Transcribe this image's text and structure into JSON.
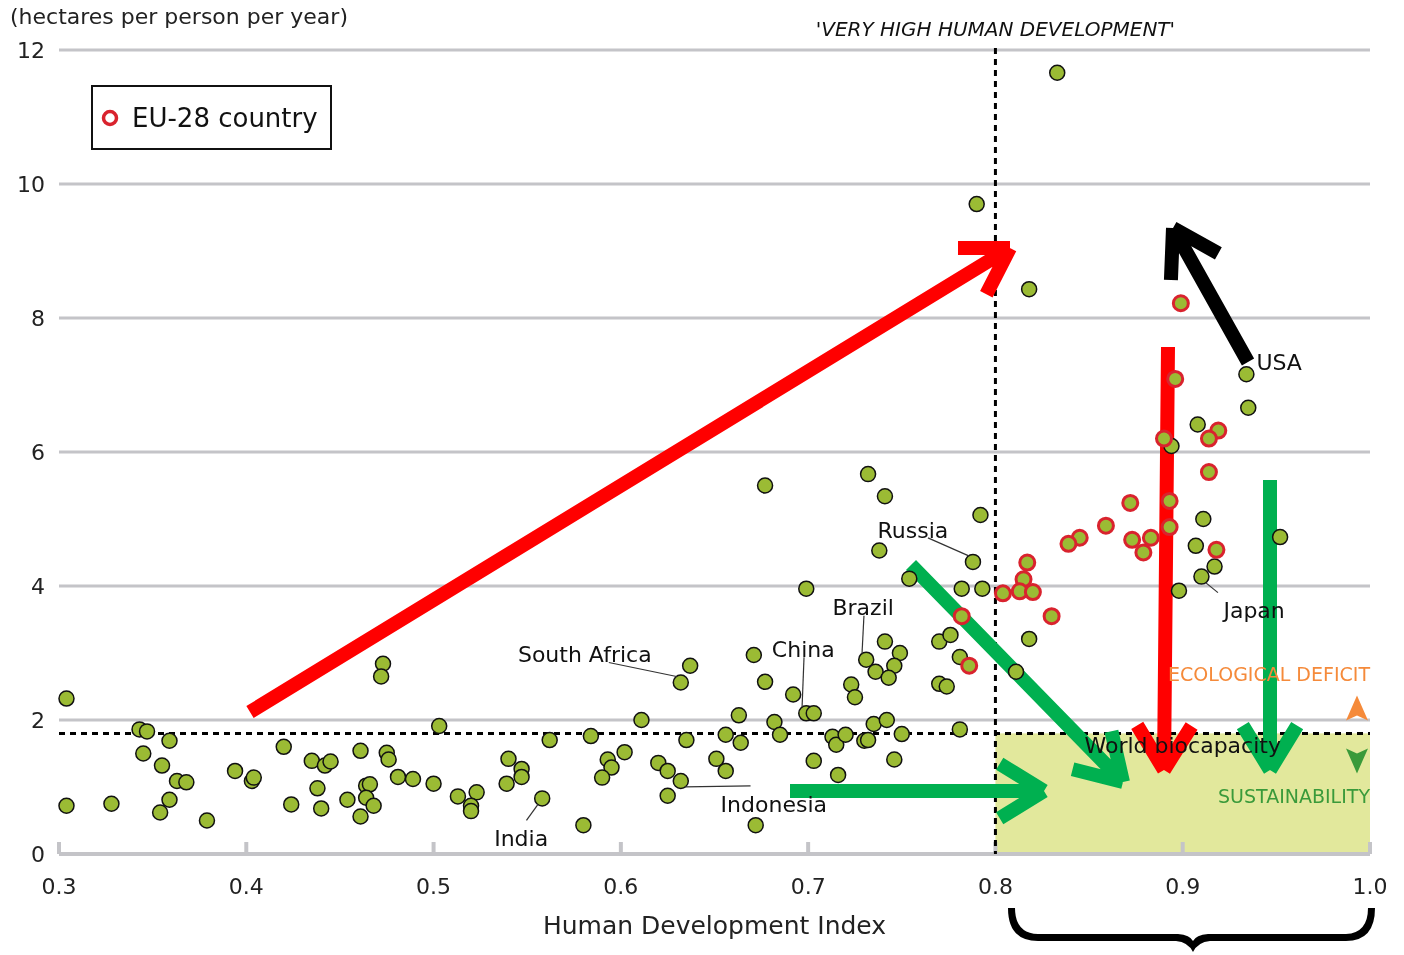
{
  "chart_data": {
    "type": "scatter",
    "ylabel": "(hectares per person per year)",
    "xlabel": "Human Development Index",
    "xlim": [
      0.3,
      1.0
    ],
    "xticks": [
      {
        "value": 0.3,
        "label": "0.3"
      },
      {
        "value": 0.4,
        "label": "0.4"
      },
      {
        "value": 0.5,
        "label": "0.5"
      },
      {
        "value": 0.6,
        "label": "0.6"
      },
      {
        "value": 0.7,
        "label": "0.7"
      },
      {
        "value": 0.8,
        "label": "0.8"
      },
      {
        "value": 0.9,
        "label": "0.9"
      },
      {
        "value": 1.0,
        "label": "1.0"
      }
    ],
    "ylim": [
      0,
      12
    ],
    "yticks": [
      0,
      2,
      4,
      6,
      8,
      10,
      12
    ],
    "grid": "y",
    "legend": "top left",
    "marker": "circle",
    "series": [
      {
        "color": "#9bbb34",
        "x": [
          0.304,
          0.304,
          0.328,
          0.343,
          0.347,
          0.359,
          0.345,
          0.355,
          0.363,
          0.368,
          0.359,
          0.354,
          0.379,
          0.394,
          0.403,
          0.404,
          0.42,
          0.424,
          0.435,
          0.442,
          0.445,
          0.438,
          0.44,
          0.454,
          0.461,
          0.464,
          0.466,
          0.464,
          0.468,
          0.461,
          0.473,
          0.472,
          0.475,
          0.476,
          0.481,
          0.489,
          0.5,
          0.503,
          0.513,
          0.523,
          0.52,
          0.52,
          0.54,
          0.547,
          0.547,
          0.539,
          0.558,
          0.58,
          0.562,
          0.584,
          0.611,
          0.593,
          0.595,
          0.602,
          0.59,
          0.62,
          0.625,
          0.632,
          0.625,
          0.637,
          0.632,
          0.635,
          0.651,
          0.656,
          0.656,
          0.664,
          0.663,
          0.671,
          0.677,
          0.692,
          0.682,
          0.685,
          0.672,
          0.699,
          0.703,
          0.703,
          0.677,
          0.732,
          0.741,
          0.792,
          0.738,
          0.788,
          0.754,
          0.699,
          0.782,
          0.793,
          0.741,
          0.749,
          0.731,
          0.746,
          0.736,
          0.743,
          0.77,
          0.776,
          0.781,
          0.723,
          0.725,
          0.77,
          0.774,
          0.713,
          0.715,
          0.72,
          0.73,
          0.732,
          0.735,
          0.742,
          0.75,
          0.781,
          0.716,
          0.746,
          0.833,
          0.79,
          0.818,
          0.934,
          0.935,
          0.908,
          0.894,
          0.911,
          0.907,
          0.917,
          0.91,
          0.952,
          0.898,
          0.818,
          0.811
        ],
        "values": [
          2.32,
          0.72,
          0.75,
          1.86,
          1.83,
          1.69,
          1.5,
          1.32,
          1.09,
          1.07,
          0.81,
          0.62,
          0.5,
          1.24,
          1.09,
          1.14,
          1.6,
          0.74,
          1.39,
          1.32,
          1.38,
          0.98,
          0.68,
          0.81,
          1.54,
          1.02,
          1.04,
          0.84,
          0.72,
          0.56,
          2.84,
          2.65,
          1.51,
          1.41,
          1.15,
          1.12,
          1.05,
          1.91,
          0.86,
          0.92,
          0.72,
          0.64,
          1.42,
          1.27,
          1.15,
          1.05,
          0.83,
          0.43,
          1.7,
          1.76,
          2.0,
          1.41,
          1.29,
          1.52,
          1.14,
          1.36,
          1.24,
          1.09,
          0.87,
          2.81,
          2.56,
          1.7,
          1.42,
          1.24,
          1.78,
          1.66,
          2.07,
          2.97,
          2.57,
          2.38,
          1.97,
          1.78,
          0.43,
          2.1,
          2.1,
          1.39,
          5.5,
          5.67,
          5.34,
          5.06,
          4.53,
          4.36,
          4.11,
          3.96,
          3.96,
          3.96,
          3.17,
          3.0,
          2.9,
          2.81,
          2.72,
          2.63,
          3.17,
          3.27,
          2.94,
          2.53,
          2.34,
          2.54,
          2.5,
          1.75,
          1.63,
          1.78,
          1.69,
          1.7,
          1.94,
          2.0,
          1.79,
          1.86,
          1.18,
          1.41,
          11.66,
          9.7,
          8.43,
          7.16,
          6.66,
          6.41,
          6.09,
          5.0,
          4.6,
          4.29,
          4.14,
          4.73,
          3.93,
          3.21,
          2.72
        ]
      },
      {
        "name": "EU-28 country",
        "color": "#d9232e",
        "x": [
          0.899,
          0.896,
          0.919,
          0.914,
          0.89,
          0.914,
          0.872,
          0.893,
          0.893,
          0.859,
          0.845,
          0.839,
          0.873,
          0.883,
          0.879,
          0.918,
          0.817,
          0.815,
          0.813,
          0.82,
          0.804,
          0.83,
          0.782,
          0.786
        ],
        "values": [
          8.22,
          7.09,
          6.32,
          6.2,
          6.2,
          5.7,
          5.24,
          5.27,
          4.88,
          4.9,
          4.72,
          4.63,
          4.69,
          4.72,
          4.5,
          4.54,
          4.35,
          4.1,
          3.92,
          3.91,
          3.89,
          3.55,
          3.55,
          2.81
        ]
      }
    ],
    "ref_lines": [
      {
        "axis": "x",
        "value": 0.8,
        "label": "'VERY HIGH HUMAN DEVELOPMENT'",
        "line_style": "dashed",
        "color": "#000000"
      },
      {
        "axis": "y",
        "value": 1.8,
        "label": "World biocapacity",
        "line_style": "dashed",
        "color": "#000000"
      }
    ],
    "bands": [
      {
        "axis": "x",
        "from": 0.8,
        "to": 1.0,
        "label": "SUSTAINABILITY",
        "color": "#e2e89c"
      }
    ],
    "annotations": [
      {
        "text": "USA",
        "x": 0.934,
        "y": 7.16
      },
      {
        "text": "Japan",
        "x": 0.91,
        "y": 4.14
      },
      {
        "text": "Russia",
        "x": 0.788,
        "y": 4.36
      },
      {
        "text": "Brazil",
        "x": 0.731,
        "y": 2.9
      },
      {
        "text": "China",
        "x": 0.699,
        "y": 2.1
      },
      {
        "text": "South Africa",
        "x": 0.632,
        "y": 2.56
      },
      {
        "text": "Indonesia",
        "x": 0.632,
        "y": 1.09
      },
      {
        "text": "India",
        "x": 0.558,
        "y": 0.83
      },
      "ECOLOGICAL DEFICIT"
    ]
  }
}
